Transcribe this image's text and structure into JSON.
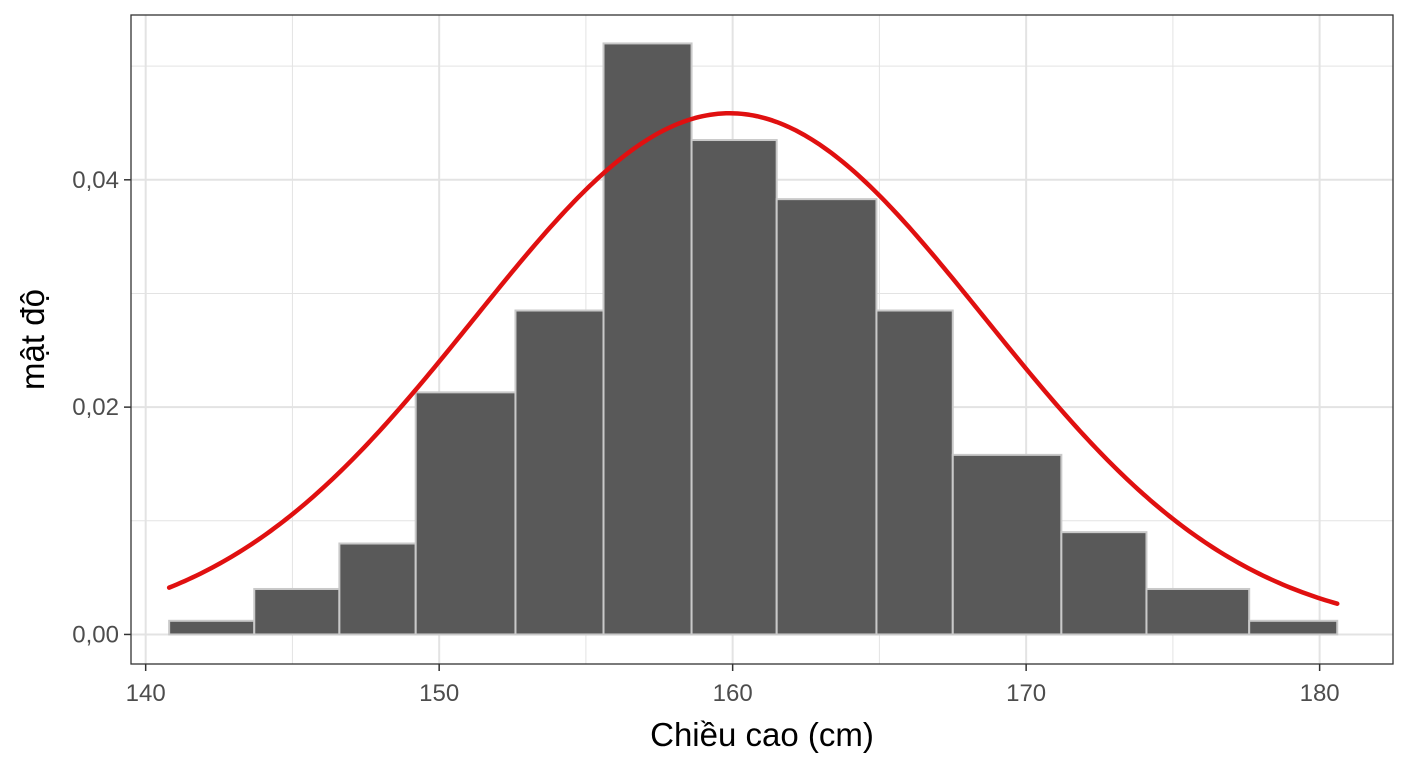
{
  "chart_data": {
    "type": "bar",
    "subtype": "histogram_with_density_curve",
    "title": "",
    "xlabel": "Chiều cao (cm)",
    "ylabel": "mật độ",
    "xlim": [
      139.5,
      182.5
    ],
    "ylim": [
      -0.0026,
      0.0545
    ],
    "x_ticks": [
      140,
      150,
      160,
      170,
      180
    ],
    "x_tick_labels": [
      "140",
      "150",
      "160",
      "170",
      "180"
    ],
    "y_ticks": [
      0.0,
      0.02,
      0.04
    ],
    "y_tick_labels": [
      "0,00",
      "0,02",
      "0,04"
    ],
    "grid": true,
    "legend": "none",
    "bins": [
      {
        "start": 140.8,
        "end": 143.7,
        "density": 0.0012
      },
      {
        "start": 143.7,
        "end": 146.6,
        "density": 0.004
      },
      {
        "start": 146.6,
        "end": 149.2,
        "density": 0.008
      },
      {
        "start": 149.2,
        "end": 152.6,
        "density": 0.0213
      },
      {
        "start": 152.6,
        "end": 155.6,
        "density": 0.0285
      },
      {
        "start": 155.6,
        "end": 158.6,
        "density": 0.052
      },
      {
        "start": 158.6,
        "end": 161.5,
        "density": 0.0435
      },
      {
        "start": 161.5,
        "end": 164.9,
        "density": 0.0383
      },
      {
        "start": 164.9,
        "end": 167.5,
        "density": 0.0285
      },
      {
        "start": 167.5,
        "end": 171.2,
        "density": 0.0158
      },
      {
        "start": 171.2,
        "end": 174.1,
        "density": 0.009
      },
      {
        "start": 174.1,
        "end": 177.6,
        "density": 0.004
      },
      {
        "start": 177.6,
        "end": 180.6,
        "density": 0.0012
      }
    ],
    "density_curve": {
      "type": "normal",
      "mean": 159.9,
      "sd": 8.7,
      "x_range": [
        140.8,
        180.6
      ]
    },
    "colors": {
      "bar_fill": "#595959",
      "bar_stroke": "#c9c9c9",
      "curve": "#e01010",
      "grid": "#e3e3e3",
      "panel_border": "#333333"
    }
  }
}
